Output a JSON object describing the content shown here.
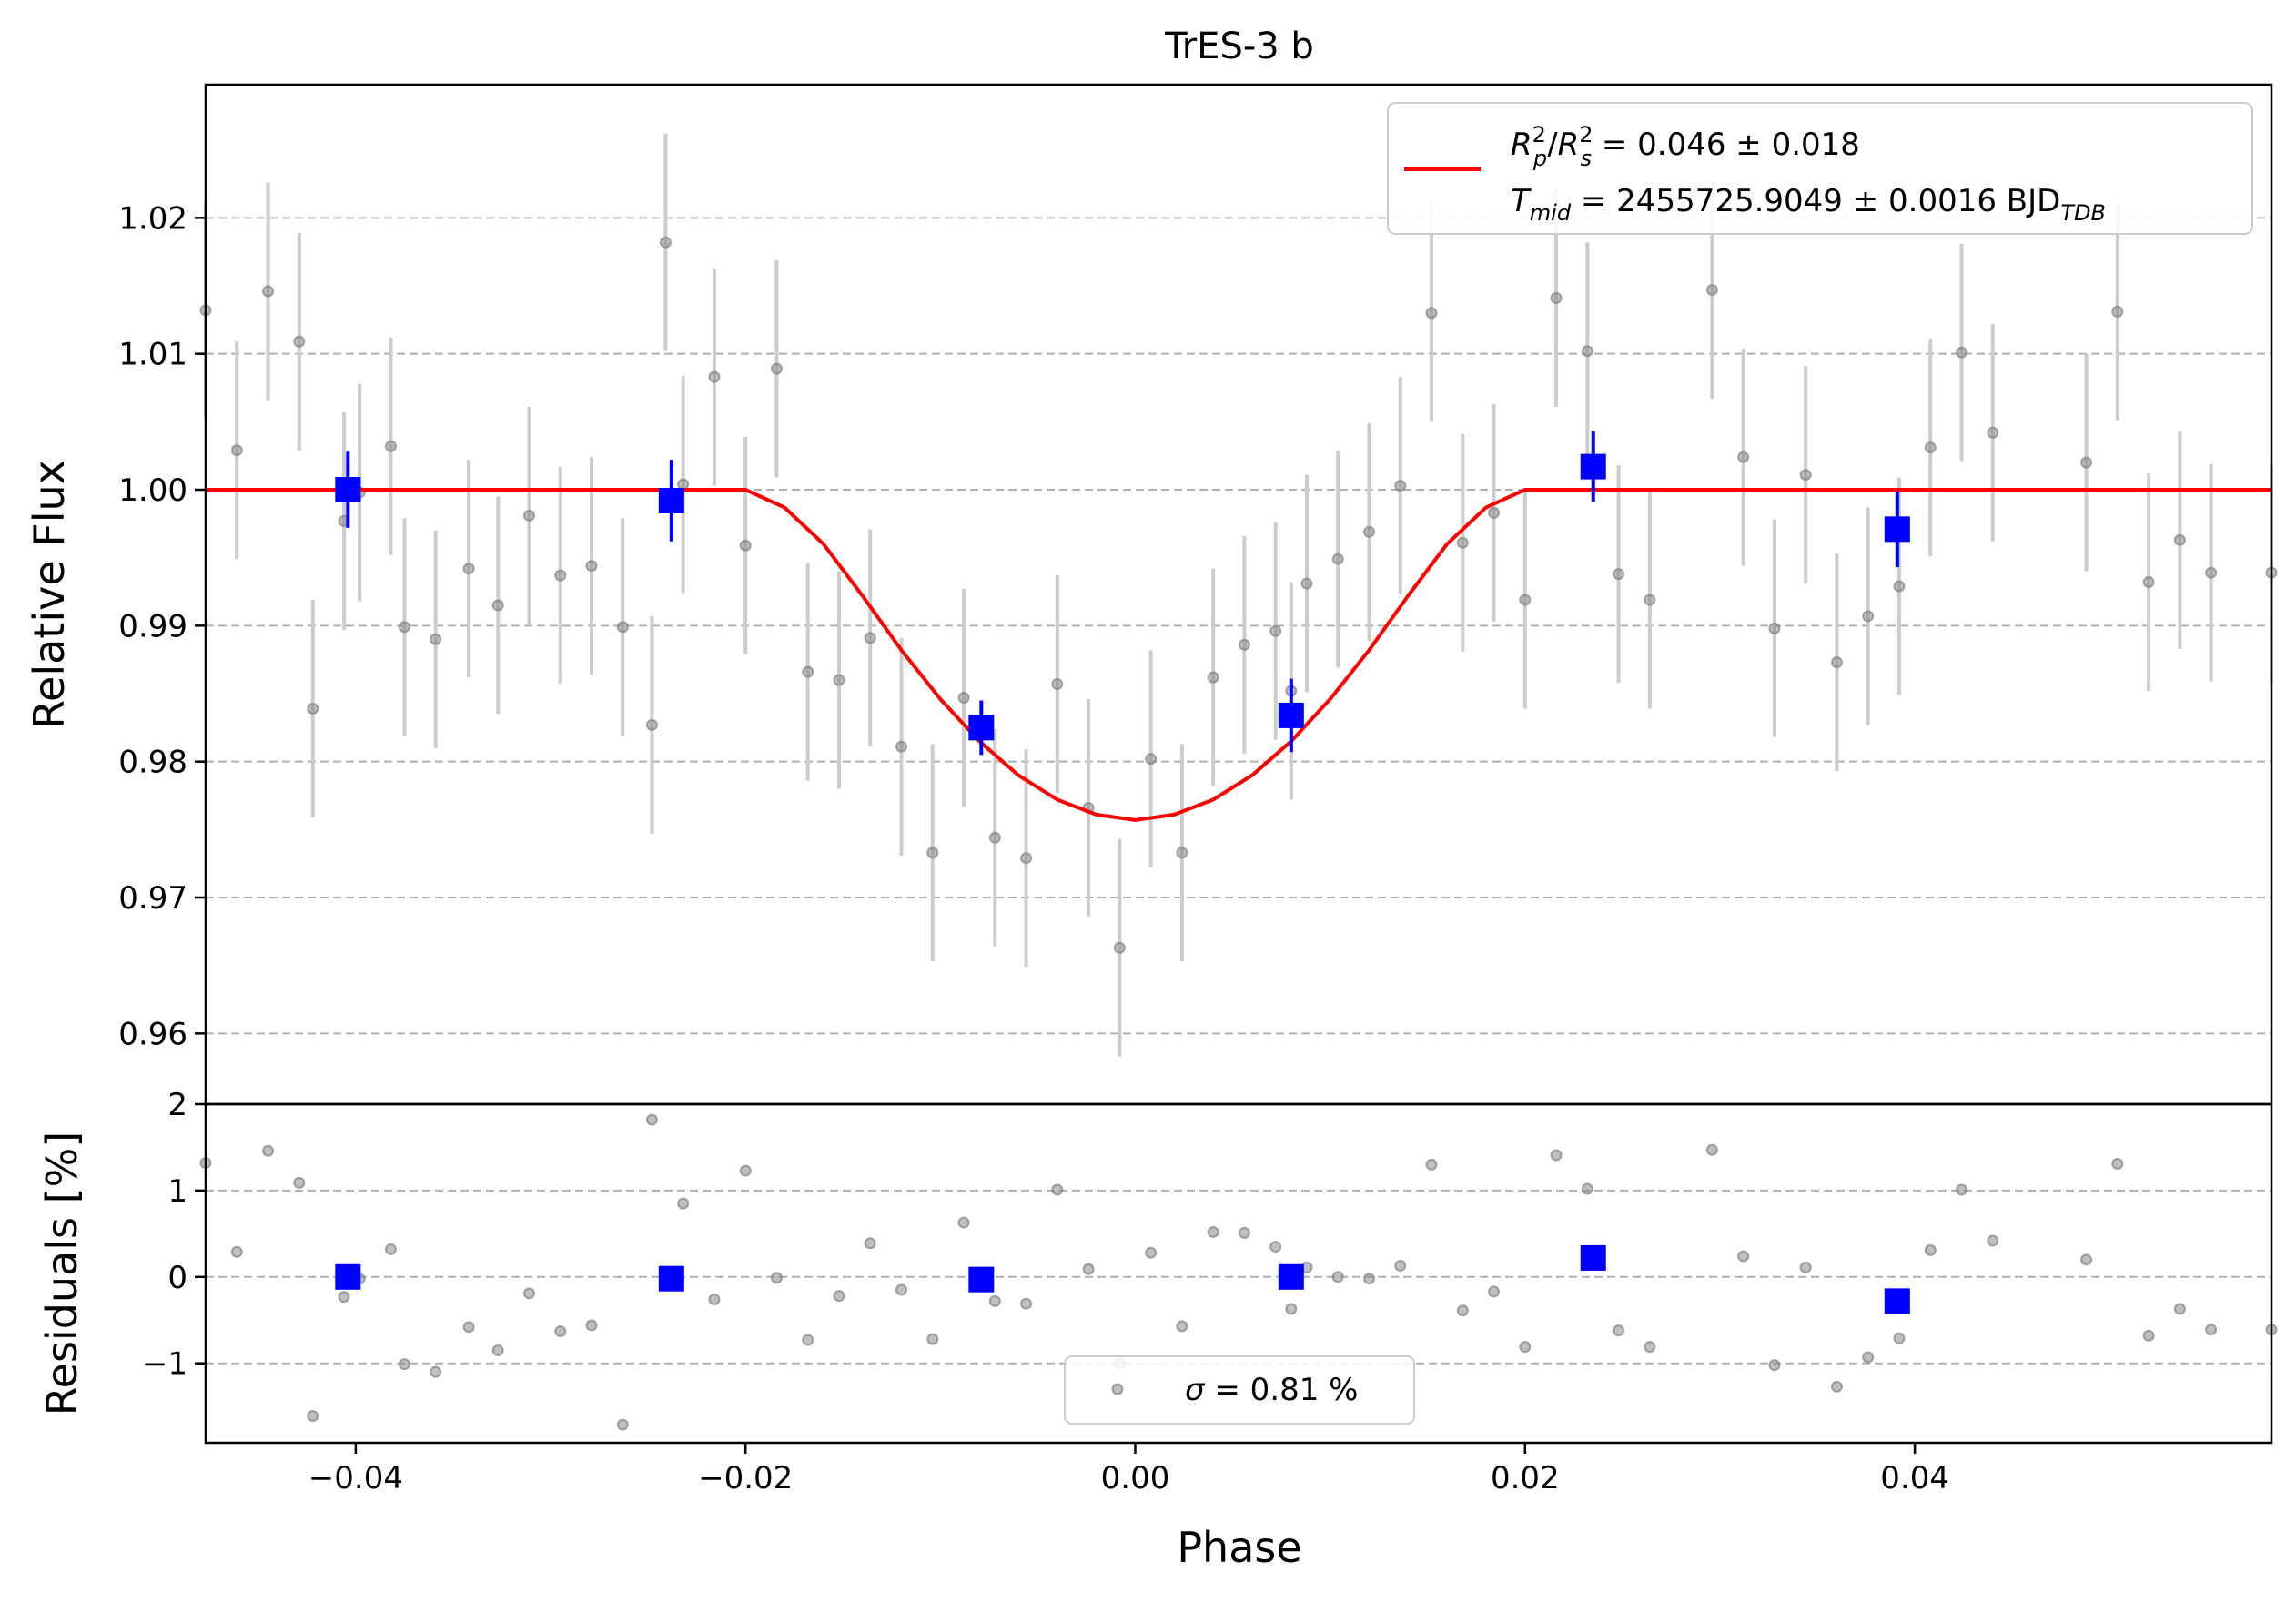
{
  "chart_data": [
    {
      "type": "scatter",
      "title": "TrES-3 b",
      "xlabel": "",
      "ylabel": "Relative Flux",
      "xlim": [
        -0.0477,
        0.0583
      ],
      "ylim": [
        0.9548,
        1.0298
      ],
      "x_ticks": [
        -0.04,
        -0.02,
        0.0,
        0.02,
        0.04
      ],
      "x_tick_labels": [
        "−0.04",
        "−0.02",
        "0.00",
        "0.02",
        "0.04"
      ],
      "y_ticks": [
        0.96,
        0.97,
        0.98,
        0.99,
        1.0,
        1.01,
        1.02
      ],
      "y_tick_labels": [
        "0.96",
        "0.97",
        "0.98",
        "0.99",
        "1.00",
        "1.01",
        "1.02"
      ],
      "grid": "horizontal dashed",
      "legend_position": "top-right",
      "legend": {
        "line1": {
          "R": "R",
          "p_sup": "2",
          "p_sub": "p",
          "slash": "/",
          "s_sup": "2",
          "s_sub": "s",
          "rest": " = 0.046 ± 0.018"
        },
        "line2": {
          "T": "T",
          "sub": "mid",
          "rest": " = 2455725.9049 ± 0.0016 BJD",
          "tdb": "TDB"
        }
      },
      "colors": {
        "data": "#808080",
        "errorbar": "#cccccc",
        "binned": "#0000ff",
        "model": "#ff0000",
        "grid": "#b0b0b0"
      },
      "series": [
        {
          "role": "data",
          "x": [
            -0.0477,
            -0.0461,
            -0.0445,
            -0.0429,
            -0.0422,
            -0.0406,
            -0.0398,
            -0.0382,
            -0.0375,
            -0.0359,
            -0.0342,
            -0.0327,
            -0.0311,
            -0.0295,
            -0.0279,
            -0.0263,
            -0.0248,
            -0.0241,
            -0.0232,
            -0.0216,
            -0.02,
            -0.0184,
            -0.0168,
            -0.0152,
            -0.0136,
            -0.012,
            -0.0104,
            -0.0088,
            -0.0072,
            -0.0056,
            -0.004,
            -0.0024,
            -0.0008,
            0.0008,
            0.0024,
            0.004,
            0.0056,
            0.0072,
            0.008,
            0.0088,
            0.0104,
            0.012,
            0.0136,
            0.0152,
            0.0168,
            0.0184,
            0.02,
            0.0216,
            0.0232,
            0.0248,
            0.0264,
            0.0296,
            0.0312,
            0.0328,
            0.0344,
            0.036,
            0.0376,
            0.0392,
            0.0408,
            0.0424,
            0.044,
            0.0488,
            0.0504,
            0.052,
            0.0536,
            0.0552,
            0.0583
          ],
          "y": [
            1.0132,
            1.0029,
            1.0146,
            1.0109,
            0.9839,
            0.9977,
            0.9998,
            1.0032,
            0.9899,
            0.989,
            0.9942,
            0.9915,
            0.9981,
            0.9937,
            0.9944,
            0.9899,
            0.9827,
            1.0182,
            1.0004,
            1.0083,
            0.9959,
            1.0089,
            0.9866,
            0.986,
            0.9891,
            0.9811,
            0.9733,
            0.9847,
            0.9744,
            0.9729,
            0.9857,
            0.9766,
            0.9663,
            0.9802,
            0.9733,
            0.9862,
            0.9886,
            0.9896,
            0.9852,
            0.9931,
            0.9949,
            0.9969,
            1.0003,
            1.013,
            0.9961,
            0.9983,
            0.9919,
            1.0141,
            1.0102,
            0.9938,
            0.9919,
            1.0147,
            1.0024,
            0.9898,
            1.0011,
            0.9873,
            0.9907,
            0.9929,
            1.0031,
            1.0101,
            1.0042,
            1.002,
            1.0131,
            0.9932,
            0.9963,
            0.9939,
            0.9939
          ],
          "yerr": 0.008
        },
        {
          "role": "binned",
          "x": [
            -0.0404,
            -0.0238,
            -0.0079,
            0.008,
            0.0235,
            0.0391
          ],
          "y": [
            1.0,
            0.9992,
            0.9825,
            0.9834,
            1.0017,
            0.9971
          ],
          "yerr": [
            0.0028,
            0.003,
            0.002,
            0.0027,
            0.0026,
            0.0028
          ]
        },
        {
          "role": "model",
          "x": [
            -0.0477,
            -0.02,
            -0.018,
            -0.016,
            -0.014,
            -0.012,
            -0.01,
            -0.008,
            -0.006,
            -0.004,
            -0.002,
            0.0,
            0.002,
            0.004,
            0.006,
            0.008,
            0.01,
            0.012,
            0.014,
            0.016,
            0.018,
            0.02,
            0.0583
          ],
          "y": [
            1.0,
            1.0,
            0.9987,
            0.996,
            0.9922,
            0.9882,
            0.9846,
            0.9815,
            0.979,
            0.9772,
            0.9761,
            0.9757,
            0.9761,
            0.9772,
            0.979,
            0.9815,
            0.9846,
            0.9882,
            0.9922,
            0.996,
            0.9987,
            1.0,
            1.0
          ]
        }
      ]
    },
    {
      "type": "scatter",
      "xlabel": "Phase",
      "ylabel": "Residuals [%]",
      "xlim": [
        -0.0477,
        0.0583
      ],
      "ylim": [
        -1.92,
        2.0
      ],
      "x_ticks": [
        -0.04,
        -0.02,
        0.0,
        0.02,
        0.04
      ],
      "x_tick_labels": [
        "−0.04",
        "−0.02",
        "0.00",
        "0.02",
        "0.04"
      ],
      "y_ticks": [
        -1,
        0,
        1,
        2
      ],
      "y_tick_labels": [
        "−1",
        "0",
        "1",
        "2"
      ],
      "grid": "horizontal dashed",
      "legend_position": "bottom-center",
      "legend": {
        "sigma": "σ",
        "rest": " = 0.81 %"
      },
      "series": [
        {
          "role": "data",
          "x": [
            -0.0477,
            -0.0461,
            -0.0445,
            -0.0429,
            -0.0422,
            -0.0406,
            -0.0398,
            -0.0382,
            -0.0375,
            -0.0359,
            -0.0342,
            -0.0327,
            -0.0311,
            -0.0295,
            -0.0279,
            -0.0263,
            -0.0248,
            -0.0241,
            -0.0232,
            -0.0216,
            -0.02,
            -0.0184,
            -0.0168,
            -0.0152,
            -0.0136,
            -0.012,
            -0.0104,
            -0.0088,
            -0.0072,
            -0.0056,
            -0.004,
            -0.0024,
            -0.0008,
            0.0008,
            0.0024,
            0.004,
            0.0056,
            0.0072,
            0.008,
            0.0088,
            0.0104,
            0.012,
            0.0136,
            0.0152,
            0.0168,
            0.0184,
            0.02,
            0.0216,
            0.0232,
            0.0248,
            0.0264,
            0.0296,
            0.0312,
            0.0328,
            0.0344,
            0.036,
            0.0376,
            0.0392,
            0.0408,
            0.0424,
            0.044,
            0.0488,
            0.0504,
            0.052,
            0.0536,
            0.0552,
            0.0583
          ],
          "y": [
            1.32,
            0.29,
            1.46,
            1.09,
            -1.61,
            -0.23,
            -0.02,
            0.32,
            -1.01,
            -1.1,
            -0.58,
            -0.85,
            -0.19,
            -0.63,
            -0.56,
            -1.71,
            1.82,
            0.04,
            0.85,
            -0.26,
            1.23,
            -0.01,
            -0.73,
            -0.22,
            0.39,
            -0.15,
            -0.72,
            0.63,
            -0.28,
            -0.31,
            1.01,
            0.09,
            -1.0,
            0.28,
            -0.57,
            0.52,
            0.51,
            0.35,
            -0.37,
            0.11,
            0.0,
            -0.02,
            0.13,
            1.3,
            -0.39,
            -0.17,
            -0.81,
            1.41,
            1.02,
            -0.62,
            -0.81,
            1.47,
            0.24,
            -1.02,
            0.11,
            -1.27,
            -0.93,
            -0.71,
            0.31,
            1.01,
            0.42,
            0.2,
            1.31,
            -0.68,
            -0.37,
            -0.61,
            -0.61
          ]
        },
        {
          "role": "binned",
          "x": [
            -0.0404,
            -0.0238,
            -0.0079,
            0.008,
            0.0235,
            0.0391
          ],
          "y": [
            0.0,
            -0.02,
            -0.03,
            0.0,
            0.22,
            -0.28
          ]
        }
      ]
    }
  ]
}
